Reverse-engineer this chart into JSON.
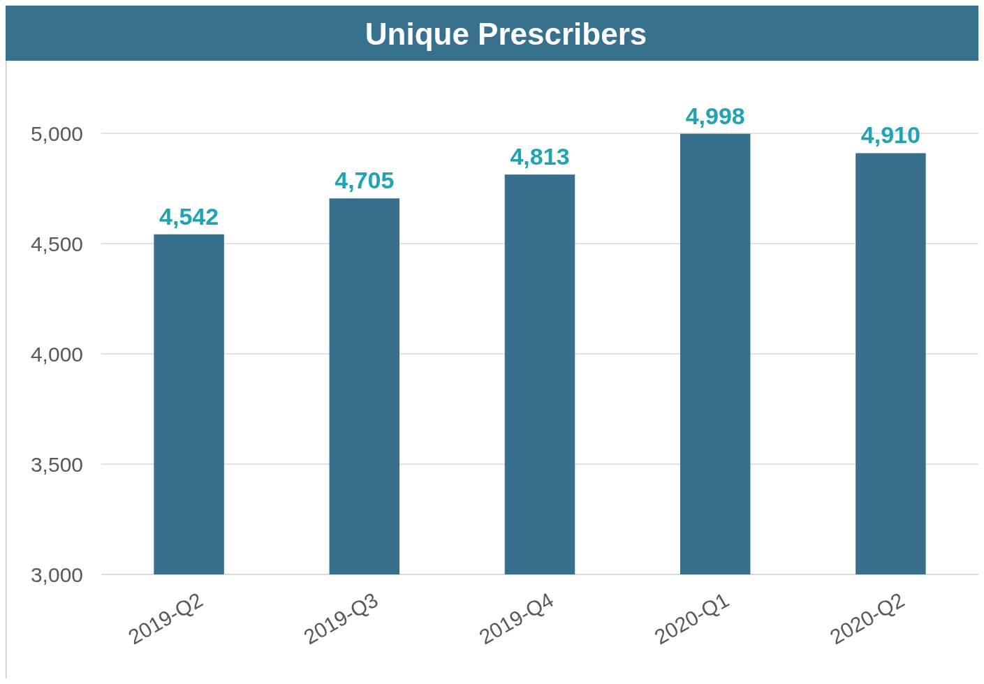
{
  "chart_data": {
    "type": "bar",
    "title": "Unique Prescribers",
    "categories": [
      "2019-Q2",
      "2019-Q3",
      "2019-Q4",
      "2020-Q1",
      "2020-Q2"
    ],
    "values": [
      4542,
      4705,
      4813,
      4998,
      4910
    ],
    "value_labels": [
      "4,542",
      "4,705",
      "4,813",
      "4,998",
      "4,910"
    ],
    "color": "#376f8c",
    "ylim": [
      3000,
      5000
    ],
    "yticks": [
      {
        "value": 3000,
        "label": "3,000"
      },
      {
        "value": 3500,
        "label": "3,500"
      },
      {
        "value": 4000,
        "label": "4,000"
      },
      {
        "value": 4500,
        "label": "4,500"
      },
      {
        "value": 5000,
        "label": "5,000"
      }
    ],
    "grid": "y"
  }
}
